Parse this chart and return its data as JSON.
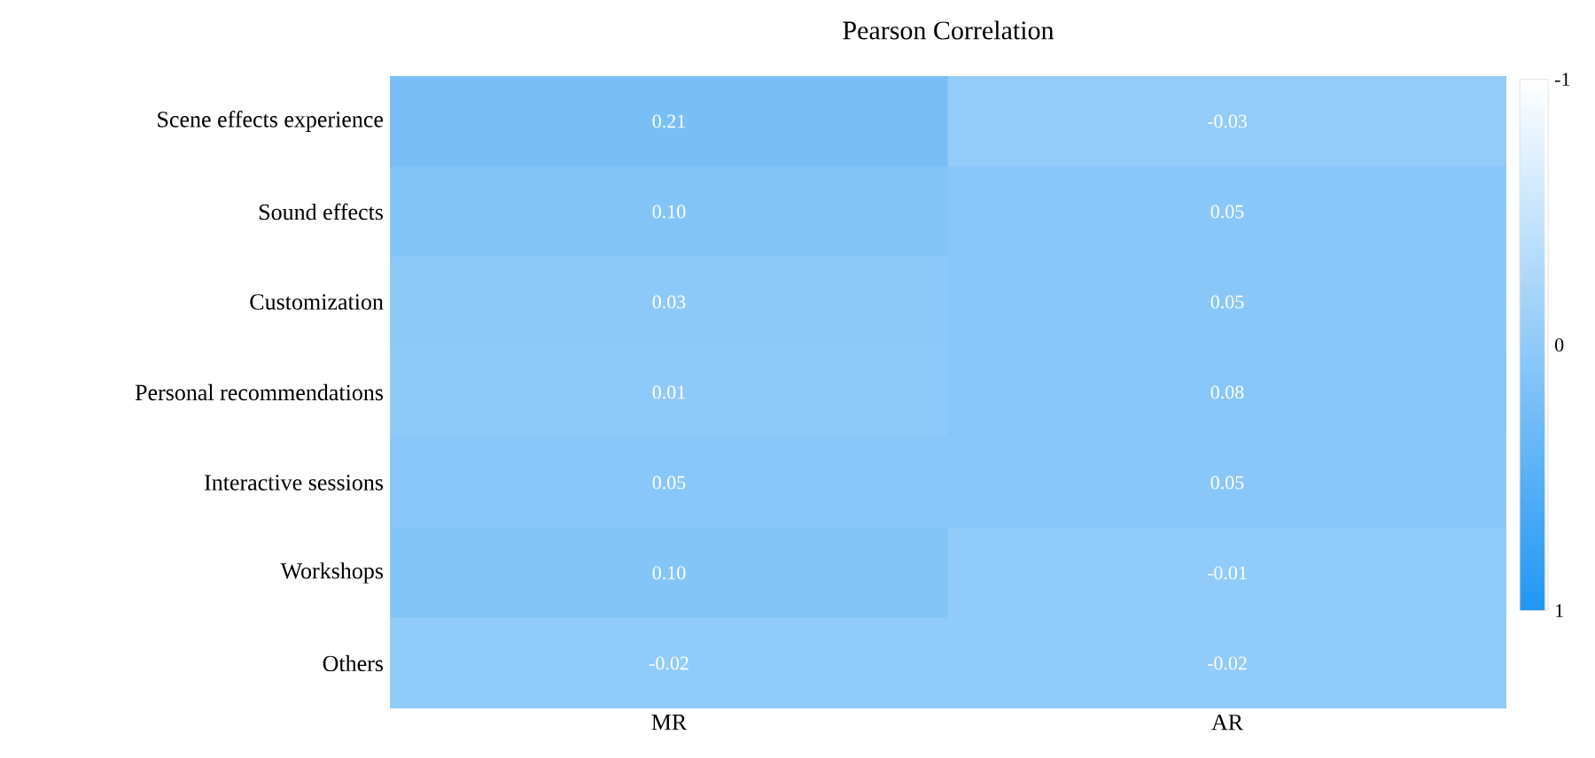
{
  "chart_data": {
    "type": "heatmap",
    "title": "Pearson Correlation",
    "categories": [
      "MR",
      "AR"
    ],
    "y_categories": [
      "Scene effects experience",
      "Sound effects",
      "Customization",
      "Personal recommendations",
      "Interactive sessions",
      "Workshops",
      "Others"
    ],
    "cells": [
      [
        0.21,
        -0.03
      ],
      [
        0.1,
        0.05
      ],
      [
        0.03,
        0.05
      ],
      [
        0.01,
        0.08
      ],
      [
        0.05,
        0.05
      ],
      [
        0.1,
        -0.01
      ],
      [
        -0.02,
        -0.02
      ]
    ],
    "cell_labels": [
      [
        "0.21",
        "-0.03"
      ],
      [
        "0.10",
        "0.05"
      ],
      [
        "0.03",
        "0.05"
      ],
      [
        "0.01",
        "0.08"
      ],
      [
        "0.05",
        "0.05"
      ],
      [
        "0.10",
        "-0.01"
      ],
      [
        "-0.02",
        "-0.02"
      ]
    ],
    "clim": [
      -1,
      1
    ],
    "cticks": [
      -1,
      0,
      1
    ]
  }
}
